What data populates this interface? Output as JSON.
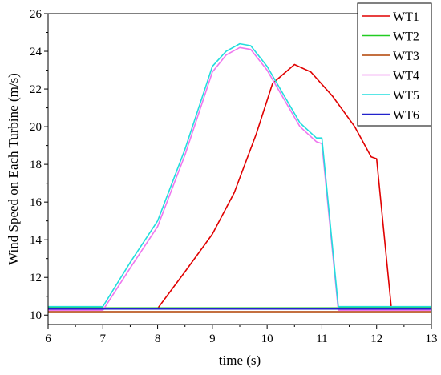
{
  "chart_data": {
    "type": "line",
    "title": "",
    "xlabel": "time (s)",
    "ylabel": "Wind Speed on Each Turbine (m/s)",
    "xlim": [
      6,
      13
    ],
    "ylim": [
      9.5,
      26
    ],
    "x_ticks": [
      "6",
      "7",
      "8",
      "9",
      "10",
      "11",
      "12",
      "13"
    ],
    "y_ticks": [
      "10",
      "12",
      "14",
      "16",
      "18",
      "20",
      "22",
      "24",
      "26"
    ],
    "grid": false,
    "legend_position": "top-right",
    "series": [
      {
        "name": "WT1",
        "color": "#e00000",
        "points": [
          [
            6,
            10.35
          ],
          [
            8,
            10.35
          ],
          [
            8.5,
            12.3
          ],
          [
            9,
            14.3
          ],
          [
            9.4,
            16.5
          ],
          [
            9.8,
            19.6
          ],
          [
            10.1,
            22.3
          ],
          [
            10.5,
            23.3
          ],
          [
            10.8,
            22.9
          ],
          [
            11.2,
            21.6
          ],
          [
            11.6,
            20.0
          ],
          [
            11.9,
            18.4
          ],
          [
            12.0,
            18.3
          ],
          [
            12.27,
            10.35
          ],
          [
            13,
            10.35
          ]
        ]
      },
      {
        "name": "WT2",
        "color": "#22cc22",
        "points": [
          [
            6,
            10.38
          ],
          [
            13,
            10.38
          ]
        ]
      },
      {
        "name": "WT3",
        "color": "#b04000",
        "points": [
          [
            6,
            10.18
          ],
          [
            13,
            10.18
          ]
        ]
      },
      {
        "name": "WT4",
        "color": "#ee77ee",
        "points": [
          [
            6,
            10.25
          ],
          [
            7,
            10.25
          ],
          [
            7.5,
            12.5
          ],
          [
            8,
            14.7
          ],
          [
            8.5,
            18.5
          ],
          [
            9,
            22.9
          ],
          [
            9.25,
            23.8
          ],
          [
            9.5,
            24.2
          ],
          [
            9.7,
            24.1
          ],
          [
            10,
            23.0
          ],
          [
            10.3,
            21.5
          ],
          [
            10.6,
            20.0
          ],
          [
            10.9,
            19.2
          ],
          [
            11.0,
            19.1
          ],
          [
            11.3,
            10.25
          ],
          [
            13,
            10.25
          ]
        ]
      },
      {
        "name": "WT5",
        "color": "#22dddd",
        "points": [
          [
            6,
            10.45
          ],
          [
            7,
            10.45
          ],
          [
            7.5,
            12.8
          ],
          [
            8,
            15.0
          ],
          [
            8.5,
            18.8
          ],
          [
            9,
            23.2
          ],
          [
            9.25,
            24.0
          ],
          [
            9.5,
            24.4
          ],
          [
            9.7,
            24.3
          ],
          [
            10,
            23.2
          ],
          [
            10.3,
            21.7
          ],
          [
            10.6,
            20.2
          ],
          [
            10.9,
            19.4
          ],
          [
            11.0,
            19.4
          ],
          [
            11.3,
            10.45
          ],
          [
            13,
            10.45
          ]
        ]
      },
      {
        "name": "WT6",
        "color": "#2222cc",
        "points": [
          [
            6,
            10.32
          ],
          [
            13,
            10.32
          ]
        ]
      }
    ]
  }
}
